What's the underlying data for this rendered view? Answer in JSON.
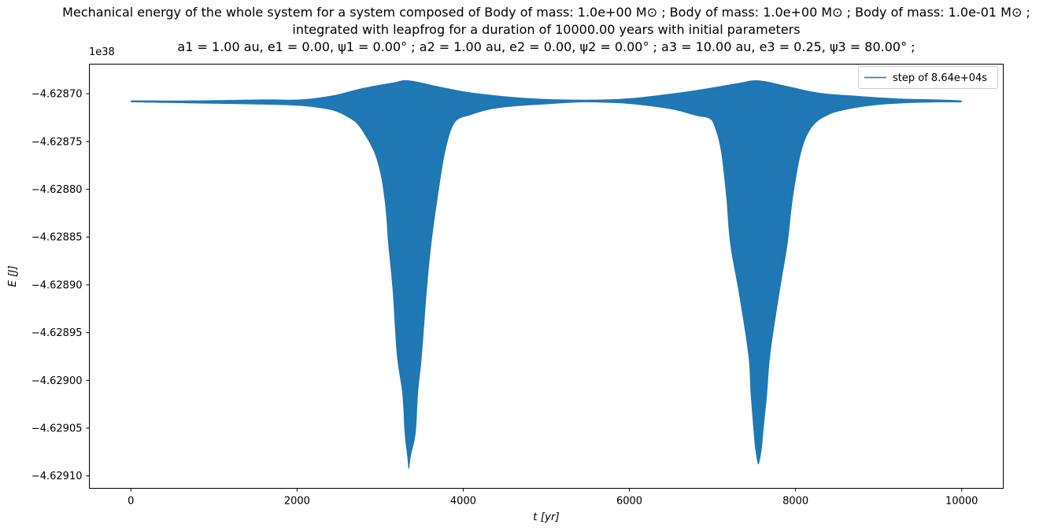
{
  "title": {
    "lines": [
      "Mechanical energy of the whole system for a system composed of Body of mass: 1.0e+00 M⊙ ; Body of mass: 1.0e+00 M⊙ ; Body of mass: 1.0e-01 M⊙ ;",
      "integrated with leapfrog for a duration of 10000.00 years with initial parameters",
      "a1 = 1.00 au, e1 = 0.00, ψ1 = 0.00° ; a2 = 1.00 au, e2 = 0.00, ψ2 = 0.00° ; a3 = 10.00 au, e3 = 0.25, ψ3 = 80.00° ;"
    ]
  },
  "chart_data": {
    "type": "area",
    "title": "Mechanical energy of the whole system, three-body system integrated with leapfrog for 10000.00 years",
    "xlabel": "t [yr]",
    "ylabel": "E [J]",
    "y_offset_label": "1e38",
    "legend": {
      "label": "step of 8.64e+04s",
      "position": "upper right"
    },
    "line_color": "#1f77b4",
    "grid": false,
    "xlim": [
      -500,
      10500
    ],
    "ylim_1e38": [
      -4.629113,
      -4.628669
    ],
    "x_ticks": [
      0,
      2000,
      4000,
      6000,
      8000,
      10000
    ],
    "y_ticks_1e38": [
      -4.6287,
      -4.62875,
      -4.6288,
      -4.62885,
      -4.6289,
      -4.62895,
      -4.629,
      -4.62905,
      -4.6291
    ],
    "series": [
      {
        "name": "step of 8.64e+04s",
        "baseline_1e38": -4.628708,
        "dip_centers_yr": [
          3345,
          7553
        ],
        "dip_minima_1e38": [
          -4.629093,
          -4.629088
        ],
        "envelope_top": [
          [
            0,
            -4.628707
          ],
          [
            800,
            -4.628707
          ],
          [
            1600,
            -4.628706
          ],
          [
            2036,
            -4.628706
          ],
          [
            2415,
            -4.628702
          ],
          [
            2793,
            -4.628694
          ],
          [
            3172,
            -4.628688
          ],
          [
            3345,
            -4.628686
          ],
          [
            3740,
            -4.628693
          ],
          [
            4119,
            -4.628699
          ],
          [
            4687,
            -4.628704
          ],
          [
            5200,
            -4.628706
          ],
          [
            5700,
            -4.628706
          ],
          [
            6100,
            -4.628704
          ],
          [
            6581,
            -4.628699
          ],
          [
            6960,
            -4.628694
          ],
          [
            7300,
            -4.628689
          ],
          [
            7553,
            -4.628686
          ],
          [
            7900,
            -4.628692
          ],
          [
            8286,
            -4.628699
          ],
          [
            8700,
            -4.628702
          ],
          [
            9233,
            -4.628705
          ],
          [
            9700,
            -4.628706
          ],
          [
            10000,
            -4.628707
          ]
        ],
        "envelope_bottom": [
          [
            0,
            -4.628709
          ],
          [
            700,
            -4.62871
          ],
          [
            1400,
            -4.628711
          ],
          [
            1900,
            -4.628712
          ],
          [
            2200,
            -4.628714
          ],
          [
            2450,
            -4.628718
          ],
          [
            2620,
            -4.628725
          ],
          [
            2746,
            -4.628734
          ],
          [
            2917,
            -4.628759
          ],
          [
            3002,
            -4.628783
          ],
          [
            3049,
            -4.628808
          ],
          [
            3078,
            -4.628833
          ],
          [
            3097,
            -4.628857
          ],
          [
            3150,
            -4.628905
          ],
          [
            3201,
            -4.628973
          ],
          [
            3267,
            -4.629014
          ],
          [
            3295,
            -4.629055
          ],
          [
            3325,
            -4.629078
          ],
          [
            3345,
            -4.629093
          ],
          [
            3372,
            -4.629078
          ],
          [
            3428,
            -4.629055
          ],
          [
            3456,
            -4.629014
          ],
          [
            3504,
            -4.628973
          ],
          [
            3560,
            -4.628908
          ],
          [
            3617,
            -4.628857
          ],
          [
            3694,
            -4.628808
          ],
          [
            3788,
            -4.628759
          ],
          [
            3901,
            -4.62873
          ],
          [
            4100,
            -4.628722
          ],
          [
            4350,
            -4.628716
          ],
          [
            4650,
            -4.628713
          ],
          [
            5000,
            -4.628711
          ],
          [
            5450,
            -4.628709
          ],
          [
            5900,
            -4.62871
          ],
          [
            6250,
            -4.628713
          ],
          [
            6550,
            -4.628717
          ],
          [
            6800,
            -4.628723
          ],
          [
            6960,
            -4.628726
          ],
          [
            7023,
            -4.628734
          ],
          [
            7100,
            -4.628759
          ],
          [
            7166,
            -4.628808
          ],
          [
            7213,
            -4.628857
          ],
          [
            7320,
            -4.62891
          ],
          [
            7431,
            -4.628973
          ],
          [
            7460,
            -4.629014
          ],
          [
            7497,
            -4.629055
          ],
          [
            7516,
            -4.629072
          ],
          [
            7553,
            -4.629088
          ],
          [
            7592,
            -4.629072
          ],
          [
            7611,
            -4.629055
          ],
          [
            7658,
            -4.629014
          ],
          [
            7696,
            -4.628973
          ],
          [
            7800,
            -4.628912
          ],
          [
            7904,
            -4.628857
          ],
          [
            7970,
            -4.628808
          ],
          [
            8075,
            -4.628759
          ],
          [
            8207,
            -4.628734
          ],
          [
            8400,
            -4.628722
          ],
          [
            8650,
            -4.628716
          ],
          [
            8950,
            -4.628712
          ],
          [
            9300,
            -4.62871
          ],
          [
            9700,
            -4.628709
          ],
          [
            10000,
            -4.628709
          ]
        ]
      }
    ]
  }
}
